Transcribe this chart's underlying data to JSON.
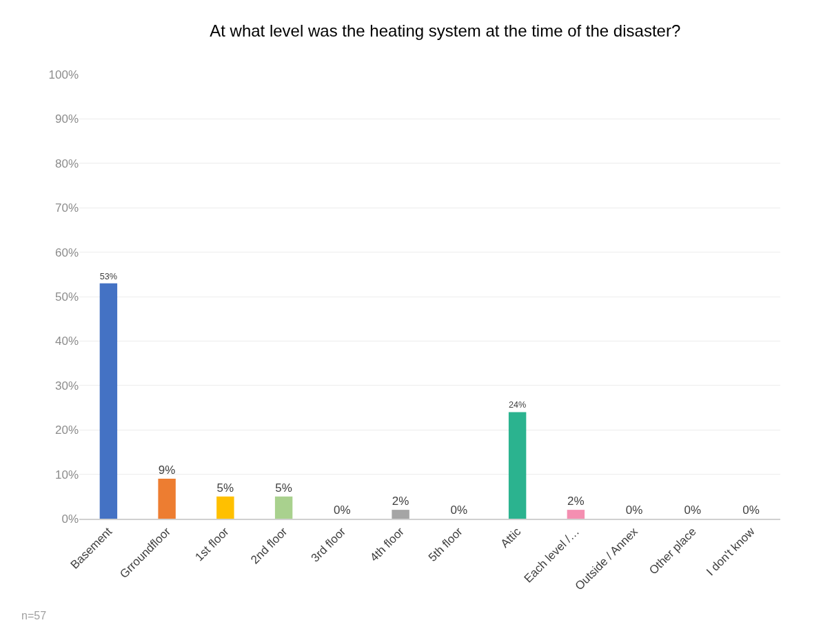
{
  "chart_data": {
    "type": "bar",
    "title": "At what level was the heating system at the time of the disaster?",
    "categories": [
      "Basement",
      "Grroundfloor",
      "1st floor",
      "2nd floor",
      "3rd floor",
      "4th floor",
      "5th floor",
      "Attic",
      "Each level /…",
      "Outside / Annex",
      "Other place",
      "I don't know"
    ],
    "values": [
      53,
      9,
      5,
      5,
      0,
      2,
      0,
      24,
      2,
      0,
      0,
      0
    ],
    "colors": [
      "#4472c4",
      "#ed7d31",
      "#ffc000",
      "#a9d18e",
      "#5b9bd5",
      "#a5a5a5",
      "#70ad47",
      "#2bb38f",
      "#f48fb1",
      "#264478",
      "#9e480e",
      "#636363"
    ],
    "value_labels": [
      "53%",
      "9%",
      "5%",
      "5%",
      "0%",
      "2%",
      "0%",
      "24%",
      "2%",
      "0%",
      "0%",
      "0%"
    ],
    "ylim": [
      0,
      100
    ],
    "yticks": [
      {
        "value": 0,
        "label": "0%"
      },
      {
        "value": 10,
        "label": "10%"
      },
      {
        "value": 20,
        "label": "20%"
      },
      {
        "value": 30,
        "label": "30%"
      },
      {
        "value": 40,
        "label": "40%"
      },
      {
        "value": 50,
        "label": "50%"
      },
      {
        "value": 60,
        "label": "60%"
      },
      {
        "value": 70,
        "label": "70%"
      },
      {
        "value": 80,
        "label": "80%"
      },
      {
        "value": 90,
        "label": "90%"
      },
      {
        "value": 100,
        "label": "100%"
      }
    ],
    "grid": "y",
    "annotations": [
      "n=57"
    ]
  }
}
